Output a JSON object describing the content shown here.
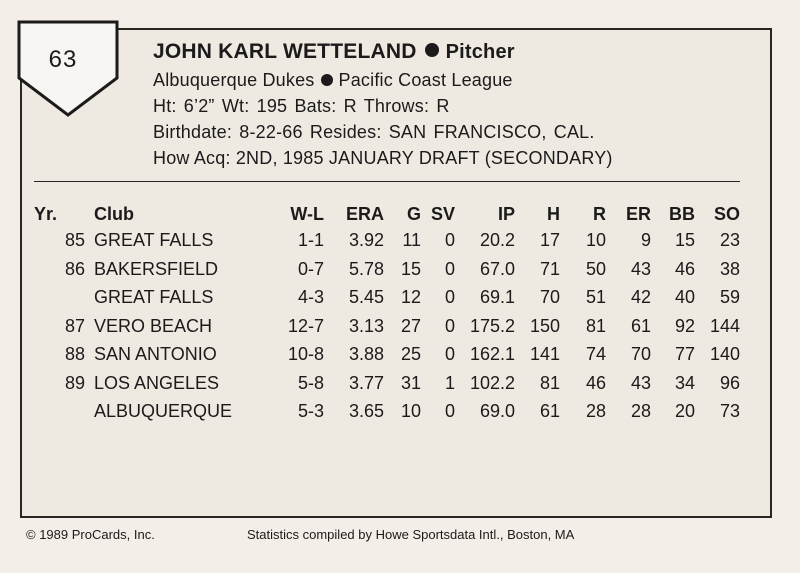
{
  "card": {
    "number": "63",
    "name": "JOHN KARL WETTELAND",
    "position": "Pitcher",
    "team": "Albuquerque Dukes",
    "league": "Pacific Coast League",
    "ht_line": "Ht: 6’2”   Wt: 195   Bats: R   Throws: R",
    "birth_line": "Birthdate: 8-22-66   Resides: SAN FRANCISCO, CAL.",
    "acq_line": "How Acq: 2ND, 1985 JANUARY DRAFT (SECONDARY)"
  },
  "stats": {
    "headers": [
      "Yr.",
      "Club",
      "W-L",
      "ERA",
      "G",
      "SV",
      "IP",
      "H",
      "R",
      "ER",
      "BB",
      "SO"
    ],
    "rows": [
      [
        "85",
        "GREAT FALLS",
        "1-1",
        "3.92",
        "11",
        "0",
        "20.2",
        "17",
        "10",
        "9",
        "15",
        "23"
      ],
      [
        "86",
        "BAKERSFIELD",
        "0-7",
        "5.78",
        "15",
        "0",
        "67.0",
        "71",
        "50",
        "43",
        "46",
        "38"
      ],
      [
        "",
        "GREAT FALLS",
        "4-3",
        "5.45",
        "12",
        "0",
        "69.1",
        "70",
        "51",
        "42",
        "40",
        "59"
      ],
      [
        "87",
        "VERO BEACH",
        "12-7",
        "3.13",
        "27",
        "0",
        "175.2",
        "150",
        "81",
        "61",
        "92",
        "144"
      ],
      [
        "88",
        "SAN ANTONIO",
        "10-8",
        "3.88",
        "25",
        "0",
        "162.1",
        "141",
        "74",
        "70",
        "77",
        "140"
      ],
      [
        "89",
        "LOS ANGELES",
        "5-8",
        "3.77",
        "31",
        "1",
        "102.2",
        "81",
        "46",
        "43",
        "34",
        "96"
      ],
      [
        "",
        "ALBUQUERQUE",
        "5-3",
        "3.65",
        "10",
        "0",
        "69.0",
        "61",
        "28",
        "28",
        "20",
        "73"
      ]
    ]
  },
  "footer": {
    "copyright": "© 1989 ProCards, Inc.",
    "credit": "Statistics compiled by Howe Sportsdata Intl., Boston, MA"
  }
}
